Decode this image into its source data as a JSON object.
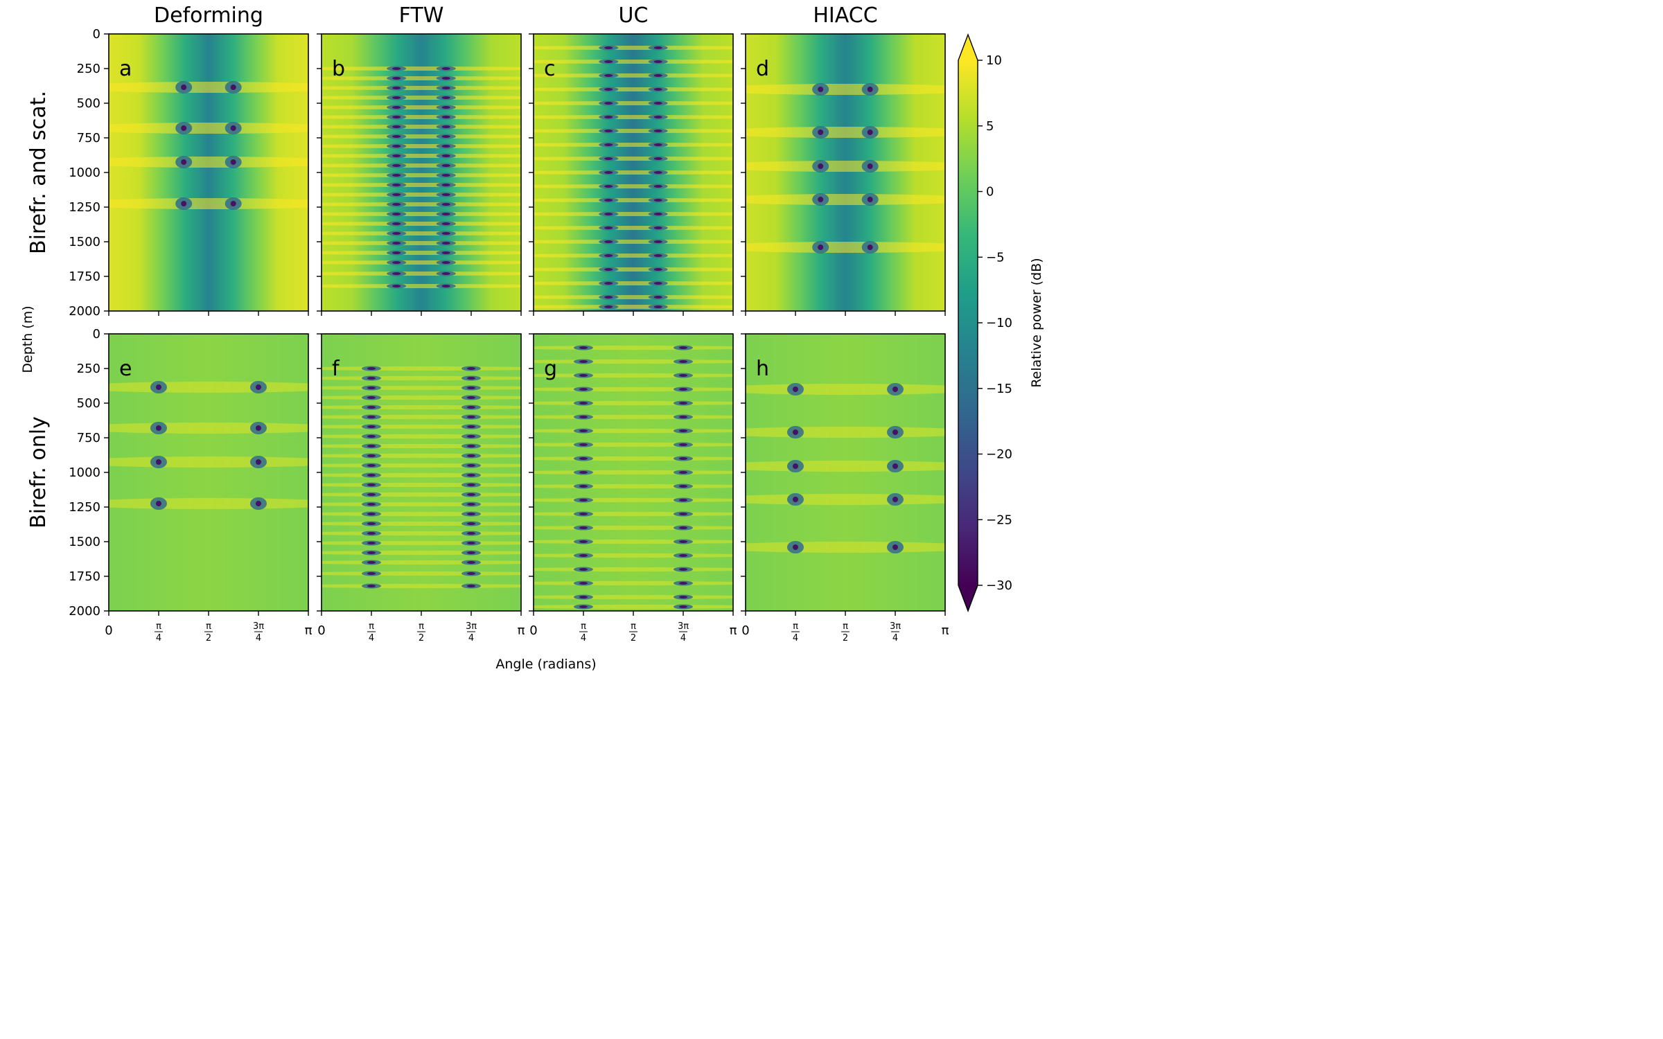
{
  "colors": {
    "colormap": "viridis",
    "colormap_stops": [
      "#440154",
      "#482878",
      "#3e4989",
      "#31688e",
      "#26828e",
      "#1f9e89",
      "#35b779",
      "#6ece58",
      "#b5de2b",
      "#fde725"
    ]
  },
  "columns": [
    "Deforming",
    "FTW",
    "UC",
    "HIACC"
  ],
  "rows": [
    "Birefr. and scat.",
    "Birefr. only"
  ],
  "panel_letters": [
    "a",
    "b",
    "c",
    "d",
    "e",
    "f",
    "g",
    "h"
  ],
  "axes": {
    "y_label": "Depth (m)",
    "x_label": "Angle (radians)",
    "y_ticks": [
      "0",
      "250",
      "500",
      "750",
      "1000",
      "1250",
      "1500",
      "1750",
      "2000"
    ],
    "x_ticks": [
      {
        "type": "text",
        "text": "0"
      },
      {
        "type": "frac",
        "num": "π",
        "den": "4"
      },
      {
        "type": "frac",
        "num": "π",
        "den": "2"
      },
      {
        "type": "frac",
        "num": "3π",
        "den": "4"
      },
      {
        "type": "text",
        "text": "π"
      }
    ]
  },
  "colorbar": {
    "label": "Relative power (dB)",
    "ticks": [
      "10",
      "5",
      "0",
      "−5",
      "−10",
      "−15",
      "−20",
      "−25",
      "−30"
    ],
    "extend": "both"
  },
  "chart_data": {
    "type": "heatmap",
    "layout": "2 rows x 4 columns of panels, shared axes",
    "x_unit": "radians",
    "xlim": [
      0,
      3.1416
    ],
    "ylim_depth_m": [
      2000,
      0
    ],
    "clim_db": [
      -30,
      10
    ],
    "colorbar_ticks_db": [
      10,
      5,
      0,
      -5,
      -10,
      -15,
      -20,
      -25,
      -30
    ],
    "panels": [
      {
        "id": "a",
        "column": "Deforming",
        "row": "Birefr. and scat.",
        "background_db": 8,
        "center_db": -12,
        "null_angles": [
          1.18,
          1.96
        ],
        "null_depths_m": [
          385,
          680,
          925,
          1225
        ]
      },
      {
        "id": "b",
        "column": "FTW",
        "row": "Birefr. and scat.",
        "background_db": 6,
        "center_db": -12,
        "null_angles": [
          1.18,
          1.96
        ],
        "null_depths_m": [
          250,
          320,
          390,
          460,
          530,
          600,
          670,
          740,
          810,
          880,
          950,
          1020,
          1090,
          1160,
          1230,
          1300,
          1370,
          1440,
          1510,
          1580,
          1650,
          1730,
          1820
        ]
      },
      {
        "id": "c",
        "column": "UC",
        "row": "Birefr. and scat.",
        "background_db": 6,
        "center_db": -14,
        "null_angles": [
          1.18,
          1.96
        ],
        "null_depths_m": [
          100,
          200,
          300,
          400,
          500,
          600,
          700,
          800,
          900,
          1000,
          1100,
          1200,
          1300,
          1400,
          1500,
          1600,
          1700,
          1800,
          1900,
          1970
        ]
      },
      {
        "id": "d",
        "column": "HIACC",
        "row": "Birefr. and scat.",
        "background_db": 7,
        "center_db": -12,
        "null_angles": [
          1.18,
          1.96
        ],
        "null_depths_m": [
          400,
          710,
          955,
          1195,
          1540
        ]
      },
      {
        "id": "e",
        "column": "Deforming",
        "row": "Birefr. only",
        "background_db": 2,
        "center_db": 3,
        "null_angles": [
          0.785,
          2.356
        ],
        "null_depths_m": [
          385,
          680,
          925,
          1225
        ]
      },
      {
        "id": "f",
        "column": "FTW",
        "row": "Birefr. only",
        "background_db": 2,
        "center_db": 3,
        "null_angles": [
          0.785,
          2.356
        ],
        "null_depths_m": [
          250,
          320,
          390,
          460,
          530,
          600,
          670,
          740,
          810,
          880,
          950,
          1020,
          1090,
          1160,
          1230,
          1300,
          1370,
          1440,
          1510,
          1580,
          1650,
          1730,
          1820
        ]
      },
      {
        "id": "g",
        "column": "UC",
        "row": "Birefr. only",
        "background_db": 2,
        "center_db": 3,
        "null_angles": [
          0.785,
          2.356
        ],
        "null_depths_m": [
          100,
          200,
          300,
          400,
          500,
          600,
          700,
          800,
          900,
          1000,
          1100,
          1200,
          1300,
          1400,
          1500,
          1600,
          1700,
          1800,
          1900,
          1970
        ]
      },
      {
        "id": "h",
        "column": "HIACC",
        "row": "Birefr. only",
        "background_db": 2,
        "center_db": 3,
        "null_angles": [
          0.785,
          2.356
        ],
        "null_depths_m": [
          400,
          710,
          955,
          1195,
          1540
        ]
      }
    ]
  }
}
